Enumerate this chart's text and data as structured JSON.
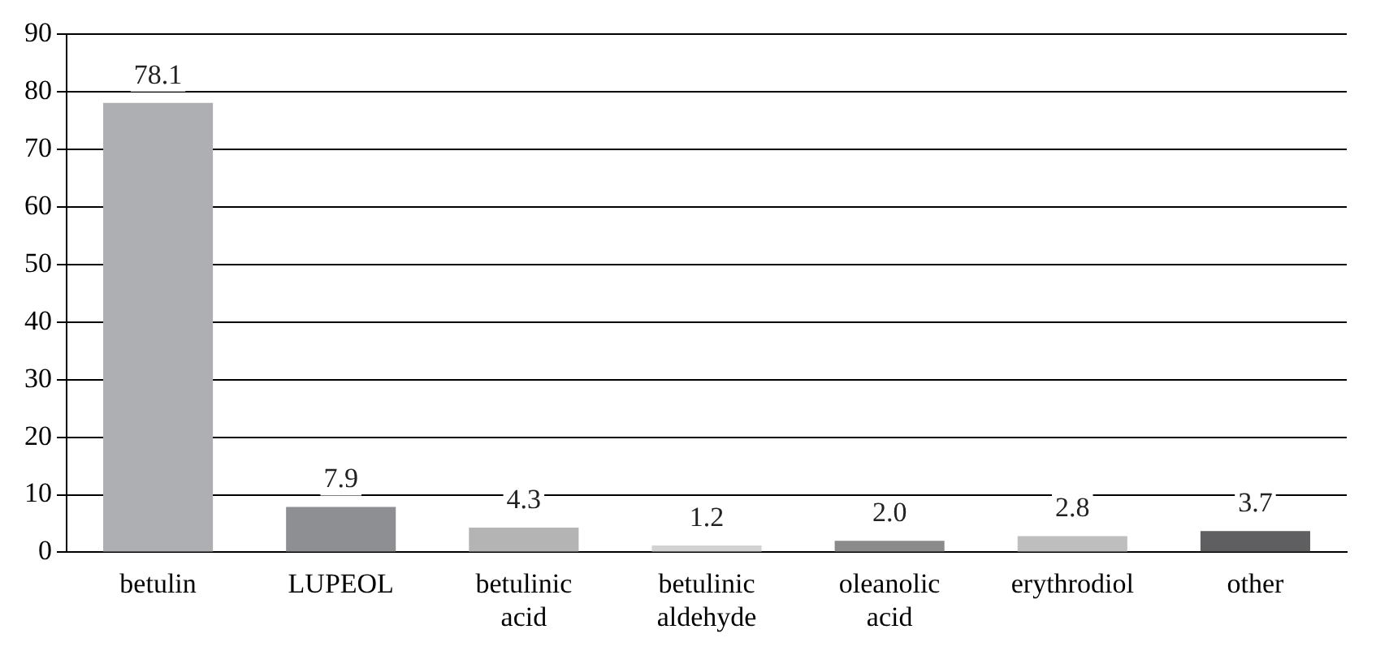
{
  "chart_data": {
    "type": "bar",
    "categories": [
      "betulin",
      "LUPEOL",
      "betulinic acid",
      "betulinic aldehyde",
      "oleanolic acid",
      "erythrodiol",
      "other"
    ],
    "values": [
      78.1,
      7.9,
      4.3,
      1.2,
      2.0,
      2.8,
      3.7
    ],
    "value_labels": [
      "78.1",
      "7.9",
      "4.3",
      "1.2",
      "2.0",
      "2.8",
      "3.7"
    ],
    "colors": [
      "#aeafb3",
      "#8e8f93",
      "#b4b4b4",
      "#d2d2d2",
      "#8a8a8a",
      "#bebebe",
      "#5f5f62"
    ],
    "ylim": [
      0,
      90
    ],
    "yticks": [
      0,
      10,
      20,
      30,
      40,
      50,
      60,
      70,
      80,
      90
    ],
    "grid": "y",
    "legend": false
  }
}
